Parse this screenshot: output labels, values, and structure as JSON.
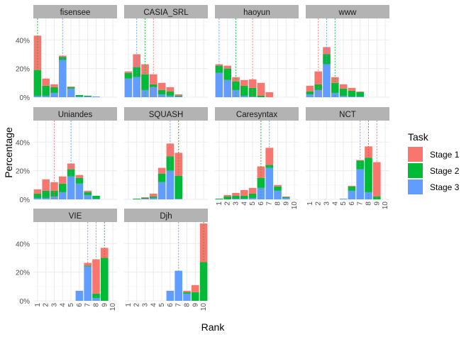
{
  "chart_data": {
    "type": "bar",
    "subtype": "faceted-stacked-bar",
    "xlabel": "Rank",
    "ylabel": "Percentage",
    "x": [
      1,
      2,
      3,
      4,
      5,
      6,
      7,
      8,
      9,
      10
    ],
    "ylim": [
      0,
      0.55
    ],
    "yticks": [
      0,
      0.2,
      0.4
    ],
    "ytick_labels": [
      "0%",
      "20%",
      "40%"
    ],
    "legend": {
      "title": "Task",
      "placement": "right",
      "entries": [
        {
          "name": "Stage 1",
          "color": "#F8766D"
        },
        {
          "name": "Stage 2",
          "color": "#00BA38"
        },
        {
          "name": "Stage 3",
          "color": "#619CFF"
        }
      ]
    },
    "panels": [
      {
        "name": "fisensee",
        "stage1": [
          0.24,
          0.05,
          0.02,
          0.01,
          0.005,
          0,
          0,
          0,
          0,
          0
        ],
        "stage2": [
          0.18,
          0.07,
          0.04,
          0.02,
          0.01,
          0.01,
          0.005,
          0,
          0,
          0
        ],
        "stage3": [
          0.01,
          0.01,
          0.03,
          0.26,
          0.06,
          0.005,
          0.005,
          0.005,
          0,
          0
        ],
        "vlines": {
          "stage1": 1,
          "stage2": 1,
          "stage3": 4
        }
      },
      {
        "name": "CASIA_SRL",
        "stage1": [
          0.01,
          0.09,
          0.07,
          0.07,
          0.05,
          0.03,
          0.01,
          0,
          0,
          0
        ],
        "stage2": [
          0.04,
          0.07,
          0.11,
          0.02,
          0.03,
          0.03,
          0.005,
          0,
          0,
          0
        ],
        "stage3": [
          0.13,
          0.14,
          0.05,
          0.07,
          0.02,
          0.01,
          0.005,
          0,
          0,
          0
        ],
        "vlines": {
          "stage1": 4,
          "stage2": 3,
          "stage3": 2
        }
      },
      {
        "name": "haoyun",
        "stage1": [
          0.01,
          0.02,
          0.03,
          0.04,
          0.06,
          0.09,
          0.035,
          0,
          0,
          0
        ],
        "stage2": [
          0.05,
          0.08,
          0.06,
          0.07,
          0.06,
          0.01,
          0,
          0,
          0,
          0
        ],
        "stage3": [
          0.17,
          0.12,
          0.05,
          0.01,
          0.005,
          0,
          0,
          0,
          0,
          0
        ],
        "vlines": {
          "stage1": 5,
          "stage2": 3,
          "stage3": 1
        }
      },
      {
        "name": "www",
        "stage1": [
          0.04,
          0.09,
          0.05,
          0.04,
          0.03,
          0.02,
          0.005,
          0,
          0,
          0
        ],
        "stage2": [
          0.02,
          0.04,
          0.07,
          0.07,
          0.05,
          0.04,
          0.03,
          0,
          0,
          0
        ],
        "stage3": [
          0.02,
          0.05,
          0.23,
          0.03,
          0.01,
          0.005,
          0.005,
          0,
          0,
          0
        ],
        "vlines": {
          "stage1": 2,
          "stage2": 4,
          "stage3": 3
        }
      },
      {
        "name": "Uniandes",
        "stage1": [
          0.03,
          0.08,
          0.06,
          0.05,
          0.04,
          0.02,
          0.01,
          0,
          0,
          0
        ],
        "stage2": [
          0.03,
          0.05,
          0.04,
          0.06,
          0.05,
          0.04,
          0.02,
          0.02,
          0,
          0
        ],
        "stage3": [
          0.01,
          0.01,
          0.02,
          0.05,
          0.16,
          0.11,
          0.03,
          0.005,
          0,
          0
        ],
        "vlines": {
          "stage1": 3,
          "stage2": 5,
          "stage3": 5
        }
      },
      {
        "name": "SQUASH",
        "stage1": [
          0,
          0,
          0.005,
          0.02,
          0.04,
          0.09,
          0.16,
          0,
          0,
          0
        ],
        "stage2": [
          0,
          0.005,
          0.005,
          0.01,
          0.06,
          0.1,
          0.16,
          0,
          0,
          0
        ],
        "stage3": [
          0,
          0,
          0.005,
          0.01,
          0.12,
          0.2,
          0.005,
          0,
          0,
          0
        ],
        "vlines": {
          "stage1": 7,
          "stage2": 7,
          "stage3": 6
        }
      },
      {
        "name": "Caresyntax",
        "stage1": [
          0,
          0.01,
          0.02,
          0.04,
          0.04,
          0.08,
          0.12,
          0.01,
          0.005,
          0
        ],
        "stage2": [
          0.005,
          0.02,
          0.02,
          0.02,
          0.03,
          0.07,
          0.02,
          0.03,
          0.005,
          0
        ],
        "stage3": [
          0,
          0,
          0.005,
          0.005,
          0.01,
          0.08,
          0.22,
          0.06,
          0.01,
          0
        ],
        "vlines": {
          "stage1": 6,
          "stage2": 6,
          "stage3": 7
        }
      },
      {
        "name": "NCT",
        "stage1": [
          0,
          0,
          0,
          0,
          0,
          0.005,
          0.005,
          0.08,
          0.24,
          0
        ],
        "stage2": [
          0,
          0,
          0,
          0,
          0,
          0.03,
          0.06,
          0.24,
          0.02,
          0
        ],
        "stage3": [
          0,
          0,
          0,
          0,
          0.005,
          0.06,
          0.21,
          0.05,
          0,
          0
        ],
        "vlines": {
          "stage1": 9,
          "stage2": 8,
          "stage3": 7
        }
      },
      {
        "name": "VIE",
        "stage1": [
          0,
          0,
          0,
          0,
          0,
          0,
          0.02,
          0.24,
          0.07,
          0
        ],
        "stage2": [
          0,
          0,
          0,
          0,
          0,
          0,
          0.005,
          0.03,
          0.3,
          0
        ],
        "stage3": [
          0,
          0,
          0,
          0,
          0,
          0.07,
          0.24,
          0.02,
          0,
          0
        ],
        "vlines": {
          "stage1": 8,
          "stage2": 9,
          "stage3": 7
        }
      },
      {
        "name": "Djh",
        "stage1": [
          0,
          0,
          0,
          0,
          0,
          0,
          0,
          0.01,
          0.05,
          0.27
        ],
        "stage2": [
          0,
          0,
          0,
          0,
          0,
          0,
          0,
          0.01,
          0.06,
          0.27
        ],
        "stage3": [
          0,
          0,
          0,
          0,
          0,
          0.07,
          0.21,
          0.05,
          0,
          0
        ],
        "vlines": {
          "stage1": 10,
          "stage2": 10,
          "stage3": 7
        }
      }
    ]
  }
}
